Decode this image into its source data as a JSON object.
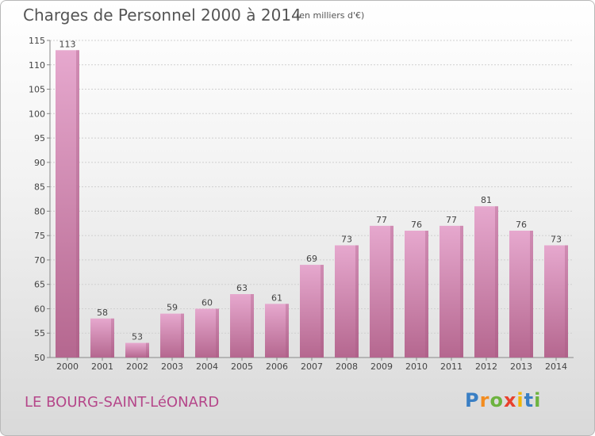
{
  "header": {
    "title": "Charges de Personnel 2000 à 2014",
    "subtitle": "(en milliers d'€)"
  },
  "footer": {
    "commune": "LE BOURG-SAINT-LéONARD",
    "logo_letters": [
      "P",
      "r",
      "o",
      "x",
      "i",
      "t",
      "i"
    ],
    "logo_colors": [
      "#3a7fc4",
      "#f28c1f",
      "#6db33f",
      "#e8412d",
      "#f2b705",
      "#3a7fc4",
      "#6db33f"
    ]
  },
  "colors": {
    "bar_top": "#e6a8ce",
    "bar_bottom": "#b5678f",
    "bar_side": "#a65a82",
    "grid": "#cfcfcf"
  },
  "chart_data": {
    "type": "bar",
    "title": "Charges de Personnel 2000 à 2014",
    "subtitle": "(en milliers d'€)",
    "categories": [
      "2000",
      "2001",
      "2002",
      "2003",
      "2004",
      "2005",
      "2006",
      "2007",
      "2008",
      "2009",
      "2010",
      "2011",
      "2012",
      "2013",
      "2014"
    ],
    "values": [
      113,
      58,
      53,
      59,
      60,
      63,
      61,
      69,
      73,
      77,
      76,
      77,
      81,
      76,
      73
    ],
    "ylim": [
      50,
      115
    ],
    "yticks": [
      50,
      55,
      60,
      65,
      70,
      75,
      80,
      85,
      90,
      95,
      100,
      105,
      110,
      115
    ],
    "grid": true
  }
}
